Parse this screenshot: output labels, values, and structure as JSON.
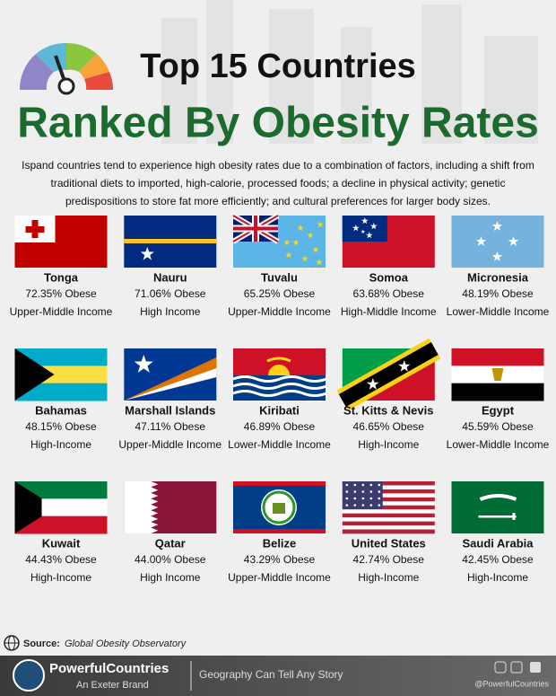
{
  "header": {
    "title": "Top 15 Countries",
    "subtitle": "Ranked By Obesity Rates",
    "description": [
      "Ispand countries tend to experience high obesity rates due to a combination of factors, including a shift from",
      "traditional diets to imported, high-calorie, processed foods; a decline in physical activity; genetic",
      "predispositions to store fat more efficiently; and cultural preferences for larger body sizes."
    ]
  },
  "countries": [
    {
      "name": "Tonga",
      "rate": "72.35% Obese",
      "income": "Upper-Middle Income"
    },
    {
      "name": "Nauru",
      "rate": "71.06% Obese",
      "income": "High Income"
    },
    {
      "name": "Tuvalu",
      "rate": "65.25% Obese",
      "income": "Upper-Middle Income"
    },
    {
      "name": "Somoa",
      "rate": "63.68% Obese",
      "income": "High-Middle Income"
    },
    {
      "name": "Micronesia",
      "rate": "48.19% Obese",
      "income": "Lower-Middle Income"
    },
    {
      "name": "Bahamas",
      "rate": "48.15% Obese",
      "income": "High-Income"
    },
    {
      "name": "Marshall Islands",
      "rate": "47.11% Obese",
      "income": "Upper-Middle Income"
    },
    {
      "name": "Kiribati",
      "rate": "46.89% Obese",
      "income": "Lower-Middle Income"
    },
    {
      "name": "St. Kitts & Nevis",
      "rate": "46.65% Obese",
      "income": "High-Income"
    },
    {
      "name": "Egypt",
      "rate": "45.59% Obese",
      "income": "Lower-Middle Income"
    },
    {
      "name": "Kuwait",
      "rate": "44.43% Obese",
      "income": "High-Income"
    },
    {
      "name": "Qatar",
      "rate": "44.00% Obese",
      "income": "High Income"
    },
    {
      "name": "Belize",
      "rate": "43.29% Obese",
      "income": "Upper-Middle Income"
    },
    {
      "name": "United States",
      "rate": "42.74% Obese",
      "income": "High-Income"
    },
    {
      "name": "Saudi Arabia",
      "rate": "42.45% Obese",
      "income": "High-Income"
    }
  ],
  "source": {
    "label": "Source:",
    "text": "Global Obesity Observatory"
  },
  "footer": {
    "brand": "PowerfulCountries",
    "tagline": "An Exeter Brand",
    "slogan": "Geography Can Tell Any Story",
    "handle": "@PowerfulCountries"
  }
}
